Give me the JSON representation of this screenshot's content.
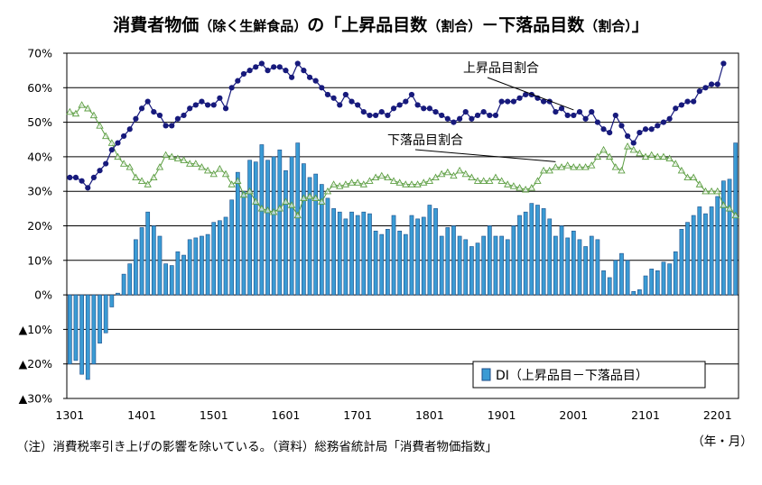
{
  "chart_data": {
    "type": "bar+line",
    "title_main": "消費者物価",
    "title_paren": "（除く生鮮食品）",
    "title_tail": "の「上昇品目数",
    "title_tail_paren": "（割合）",
    "title_tail2": "－下落品目数",
    "title_tail2_paren": "（割合）",
    "title_end": "」",
    "ylim": [
      -30,
      70
    ],
    "y_ticks": [
      70,
      60,
      50,
      40,
      30,
      20,
      10,
      0,
      -10,
      -20,
      -30
    ],
    "y_tick_labels": [
      "70%",
      "60%",
      "50%",
      "40%",
      "30%",
      "20%",
      "10%",
      "0%",
      "▲10%",
      "▲20%",
      "▲30%"
    ],
    "x_tick_labels": [
      "1301",
      "1401",
      "1501",
      "1601",
      "1701",
      "1801",
      "1901",
      "2001",
      "2101",
      "2201"
    ],
    "x_unit": "（年・月）",
    "grid": true,
    "legend_label": "DI（上昇品目－下落品目）",
    "colors": {
      "di": "#3a9bd4",
      "di_edge": "#1c4e8a",
      "up": "#171a7c",
      "down": "#5c9e42",
      "grid": "#000000"
    },
    "series": [
      {
        "name": "DI（上昇品目－下落品目）",
        "kind": "bar",
        "values": [
          -20,
          -19,
          -23,
          -24.5,
          -20,
          -14,
          -11,
          -3.5,
          0.5,
          6,
          9,
          16,
          19.5,
          24,
          20,
          17,
          9,
          8.5,
          12.5,
          11.5,
          16,
          16.5,
          17,
          17.5,
          21,
          21.5,
          22.5,
          27.5,
          35.5,
          30,
          39,
          38.5,
          43.5,
          39,
          40,
          42,
          36,
          40,
          44,
          38,
          34,
          35,
          32,
          28,
          25,
          24,
          22,
          24,
          23,
          24,
          23.5,
          18.5,
          17.5,
          19,
          23,
          18.5,
          17.5,
          23,
          22,
          22.5,
          26,
          25,
          17,
          19.5,
          20,
          17,
          16,
          14,
          15,
          17,
          20,
          17,
          17,
          16,
          20,
          23,
          24,
          26.5,
          26,
          25,
          22,
          17,
          20,
          16.5,
          18.5,
          16,
          14,
          17,
          16,
          7,
          5,
          10,
          12,
          10,
          1,
          1.5,
          5.5,
          7.5,
          7,
          9.5,
          9,
          12.5,
          19,
          21,
          23,
          25.5,
          23.5,
          25.5,
          28.5,
          33,
          33.5,
          44
        ]
      },
      {
        "name": "上昇品目割合",
        "kind": "line",
        "values": [
          34,
          34,
          33,
          31,
          34,
          36,
          38,
          42,
          44,
          46,
          48,
          51,
          54,
          56,
          53,
          52,
          49,
          49,
          51,
          52,
          54,
          55,
          56,
          55,
          55,
          57,
          54,
          60,
          62,
          64,
          65,
          66,
          67,
          65,
          66,
          66,
          65,
          63,
          67,
          65,
          63,
          62,
          60,
          58,
          57,
          55,
          58,
          56,
          55,
          53,
          52,
          52,
          53,
          52,
          54,
          55,
          56,
          58,
          55,
          54,
          54,
          53,
          52,
          51,
          50,
          51,
          53,
          51,
          52,
          53,
          52,
          52,
          56,
          56,
          56,
          57,
          58,
          58,
          57,
          56,
          56,
          53,
          54,
          52,
          52,
          53,
          51,
          53,
          50,
          48,
          47,
          52,
          49,
          46,
          44,
          47,
          48,
          48,
          49,
          50,
          51,
          54,
          55,
          56,
          56,
          59,
          60,
          61,
          61,
          67
        ]
      },
      {
        "name": "下落品目割合",
        "kind": "line",
        "values": [
          53,
          52.5,
          55,
          54,
          52,
          49,
          46,
          44,
          40,
          38,
          37,
          34,
          33,
          32,
          34,
          37,
          40.5,
          40,
          39.5,
          39,
          38,
          38,
          37,
          36,
          35,
          36.5,
          35,
          32,
          33,
          29,
          30,
          27,
          25,
          24.5,
          24,
          25,
          27,
          26,
          23,
          28,
          28.5,
          28,
          27,
          30,
          32,
          31.5,
          32,
          32.5,
          32.5,
          32,
          33,
          34,
          34.5,
          34,
          33,
          32.5,
          32,
          32,
          32,
          32.5,
          33,
          34,
          35,
          35.5,
          34.5,
          36,
          35,
          34,
          33,
          33,
          33,
          34,
          33,
          32,
          31.5,
          31,
          30.5,
          31,
          33,
          36,
          36,
          37,
          37,
          37.5,
          37,
          37,
          37,
          37.5,
          40,
          42,
          40,
          37,
          36,
          43,
          42,
          41,
          40,
          40.5,
          40,
          40,
          39.5,
          38,
          36,
          34,
          34,
          32,
          30,
          30,
          30,
          26,
          25,
          23
        ]
      }
    ],
    "annotations": [
      {
        "text": "上昇品目割合",
        "for": "上昇品目割合"
      },
      {
        "text": "下落品目割合",
        "for": "下落品目割合"
      }
    ]
  },
  "footer": {
    "note": "（注）消費税率引き上げの影響を除いている。（資料）総務省統計局「消費者物価指数」"
  }
}
